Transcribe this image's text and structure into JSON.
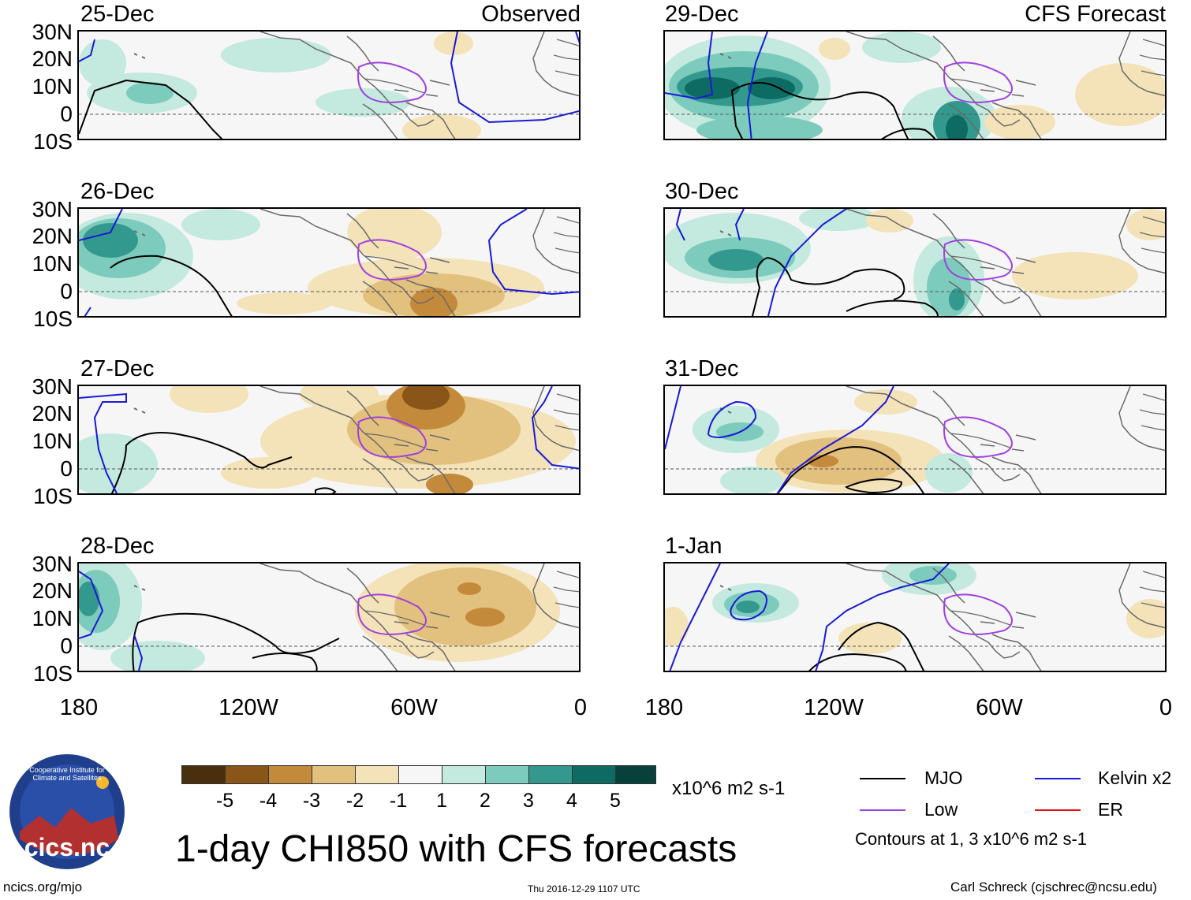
{
  "headers": {
    "observed": "Observed",
    "forecast": "CFS Forecast"
  },
  "panels": [
    {
      "date": "25-Dec"
    },
    {
      "date": "26-Dec"
    },
    {
      "date": "27-Dec"
    },
    {
      "date": "28-Dec"
    },
    {
      "date": "29-Dec"
    },
    {
      "date": "30-Dec"
    },
    {
      "date": "31-Dec"
    },
    {
      "date": "1-Jan"
    }
  ],
  "axes": {
    "y_labels": [
      "30N",
      "20N",
      "10N",
      "0",
      "10S"
    ],
    "x_labels": [
      "180",
      "120W",
      "60W",
      "0"
    ]
  },
  "colorbar": {
    "labels": [
      "-5",
      "-4",
      "-3",
      "-2",
      "-1",
      "1",
      "2",
      "3",
      "4",
      "5"
    ],
    "colors": [
      "#4a2f0e",
      "#8a5519",
      "#c48a3b",
      "#e2c07e",
      "#f4e2b8",
      "#f6f6f6",
      "#c4e9df",
      "#7ccbbd",
      "#33998e",
      "#0e6b63",
      "#08403b"
    ],
    "units": "x10^6 m2 s-1"
  },
  "legend": {
    "mjo": {
      "label": "MJO",
      "color": "#000000"
    },
    "kelvin": {
      "label": "Kelvin x2",
      "color": "#1a1ad6"
    },
    "low": {
      "label": "Low",
      "color": "#a040e0"
    },
    "er": {
      "label": "ER",
      "color": "#e01010"
    },
    "note": "Contours at 1, 3 x10^6 m2 s-1"
  },
  "logo_text": "cics.nc",
  "logo_ring_text": "Cooperative Institute for Climate and Satellites",
  "main_title": "1-day CHI850 with CFS forecasts",
  "footer": {
    "left": "ncics.org/mjo",
    "center": "Thu 2016-12-29 1107 UTC",
    "right": "Carl Schreck (cjschrec@ncsu.edu)"
  }
}
